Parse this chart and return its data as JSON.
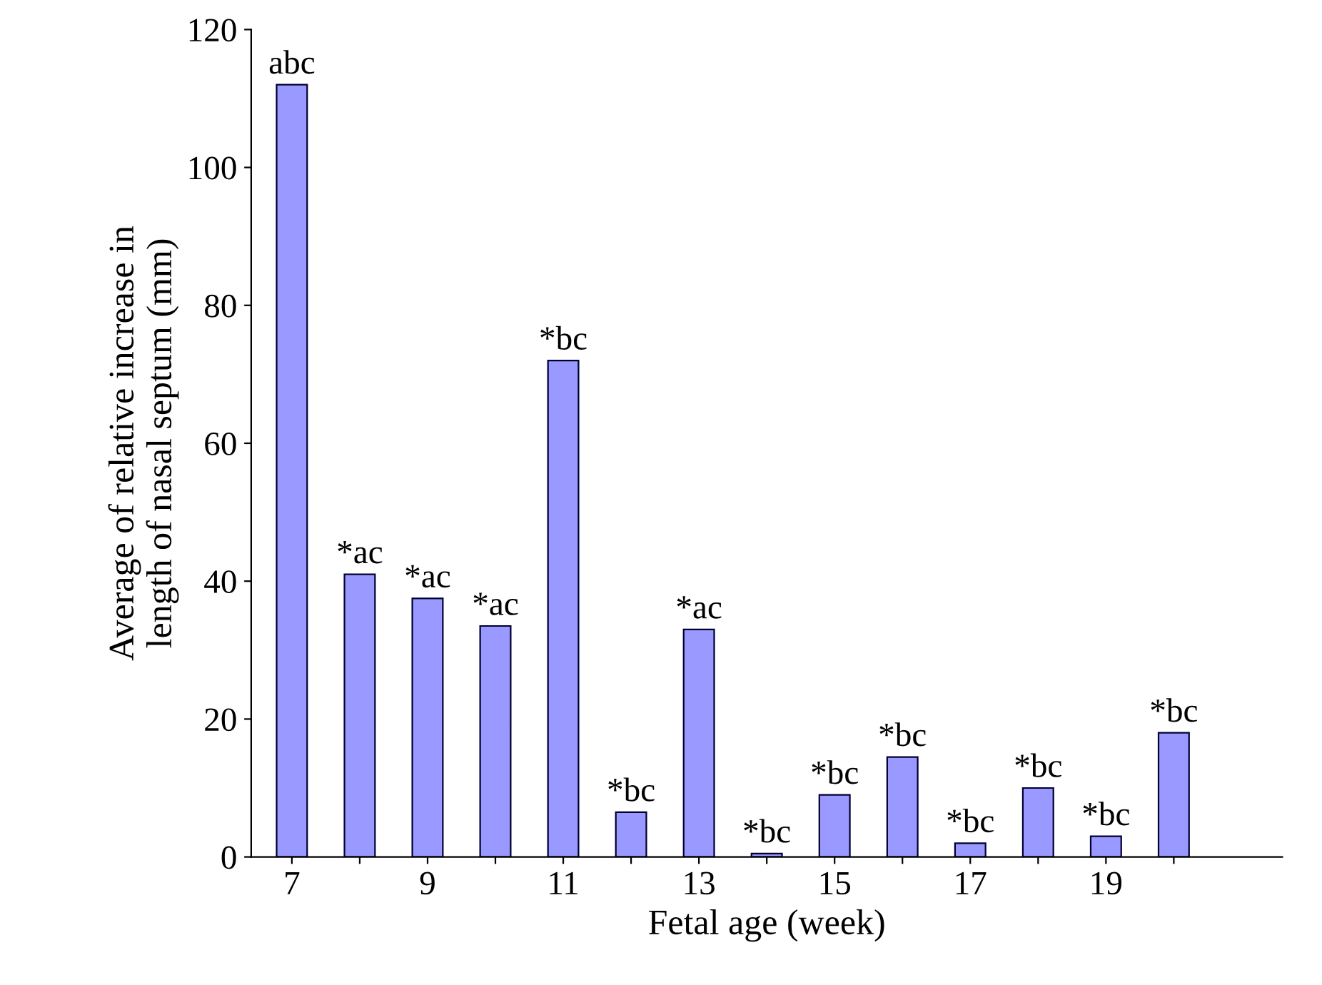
{
  "chart_data": {
    "type": "bar",
    "xlabel": "Fetal age (week)",
    "ylabel": "Average of relative increase in\nlength of nasal septum (mm)",
    "categories": [
      "7",
      null,
      "9",
      null,
      "11",
      null,
      "13",
      null,
      "15",
      null,
      "17",
      null,
      "19",
      null
    ],
    "values": [
      112,
      41,
      37.5,
      33.5,
      72,
      6.5,
      33,
      0.5,
      9,
      14.5,
      2,
      10,
      3,
      18
    ],
    "value_labels": [
      "abc",
      "*ac",
      "*ac",
      "*ac",
      "*bc",
      "*bc",
      "*ac",
      "*bc",
      "*bc",
      "*bc",
      "*bc",
      "*bc",
      "*bc",
      "*bc"
    ],
    "color": "#9999ff",
    "ylim": [
      0,
      120
    ],
    "yticks": [
      0,
      20,
      40,
      60,
      80,
      100,
      120
    ],
    "grid": false,
    "legend": false
  }
}
